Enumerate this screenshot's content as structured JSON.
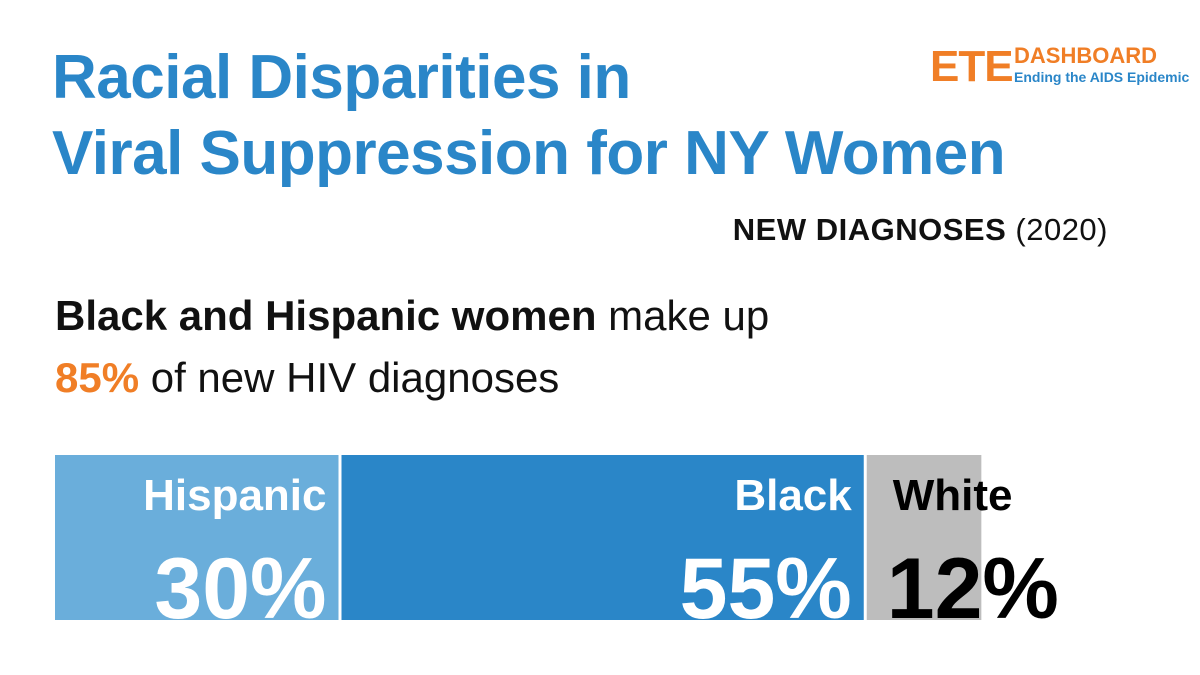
{
  "title": {
    "line1": "Racial Disparities in",
    "line2": "Viral Suppression for NY Women"
  },
  "subtitle": {
    "strong": "NEW DIAGNOSES",
    "year": "(2020)"
  },
  "logo": {
    "brand": "ETE",
    "product": "DASHBOARD",
    "tagline": "Ending the AIDS Epidemic"
  },
  "headline": {
    "bold_part": "Black and Hispanic women",
    "rest_line1": " make up",
    "percent": "85%",
    "rest_line2": " of new HIV diagnoses"
  },
  "colors": {
    "title": "#2a86c8",
    "accent": "#f07e26",
    "hispanic": "#6aaedb",
    "black": "#2a86c8",
    "white": "#bdbdbd"
  },
  "chart_data": {
    "type": "bar",
    "orientation": "horizontal-stacked",
    "categories": [
      "Hispanic",
      "Black",
      "White"
    ],
    "values": [
      30,
      55,
      12
    ],
    "value_labels": [
      "30%",
      "55%",
      "12%"
    ],
    "unit": "%"
  }
}
